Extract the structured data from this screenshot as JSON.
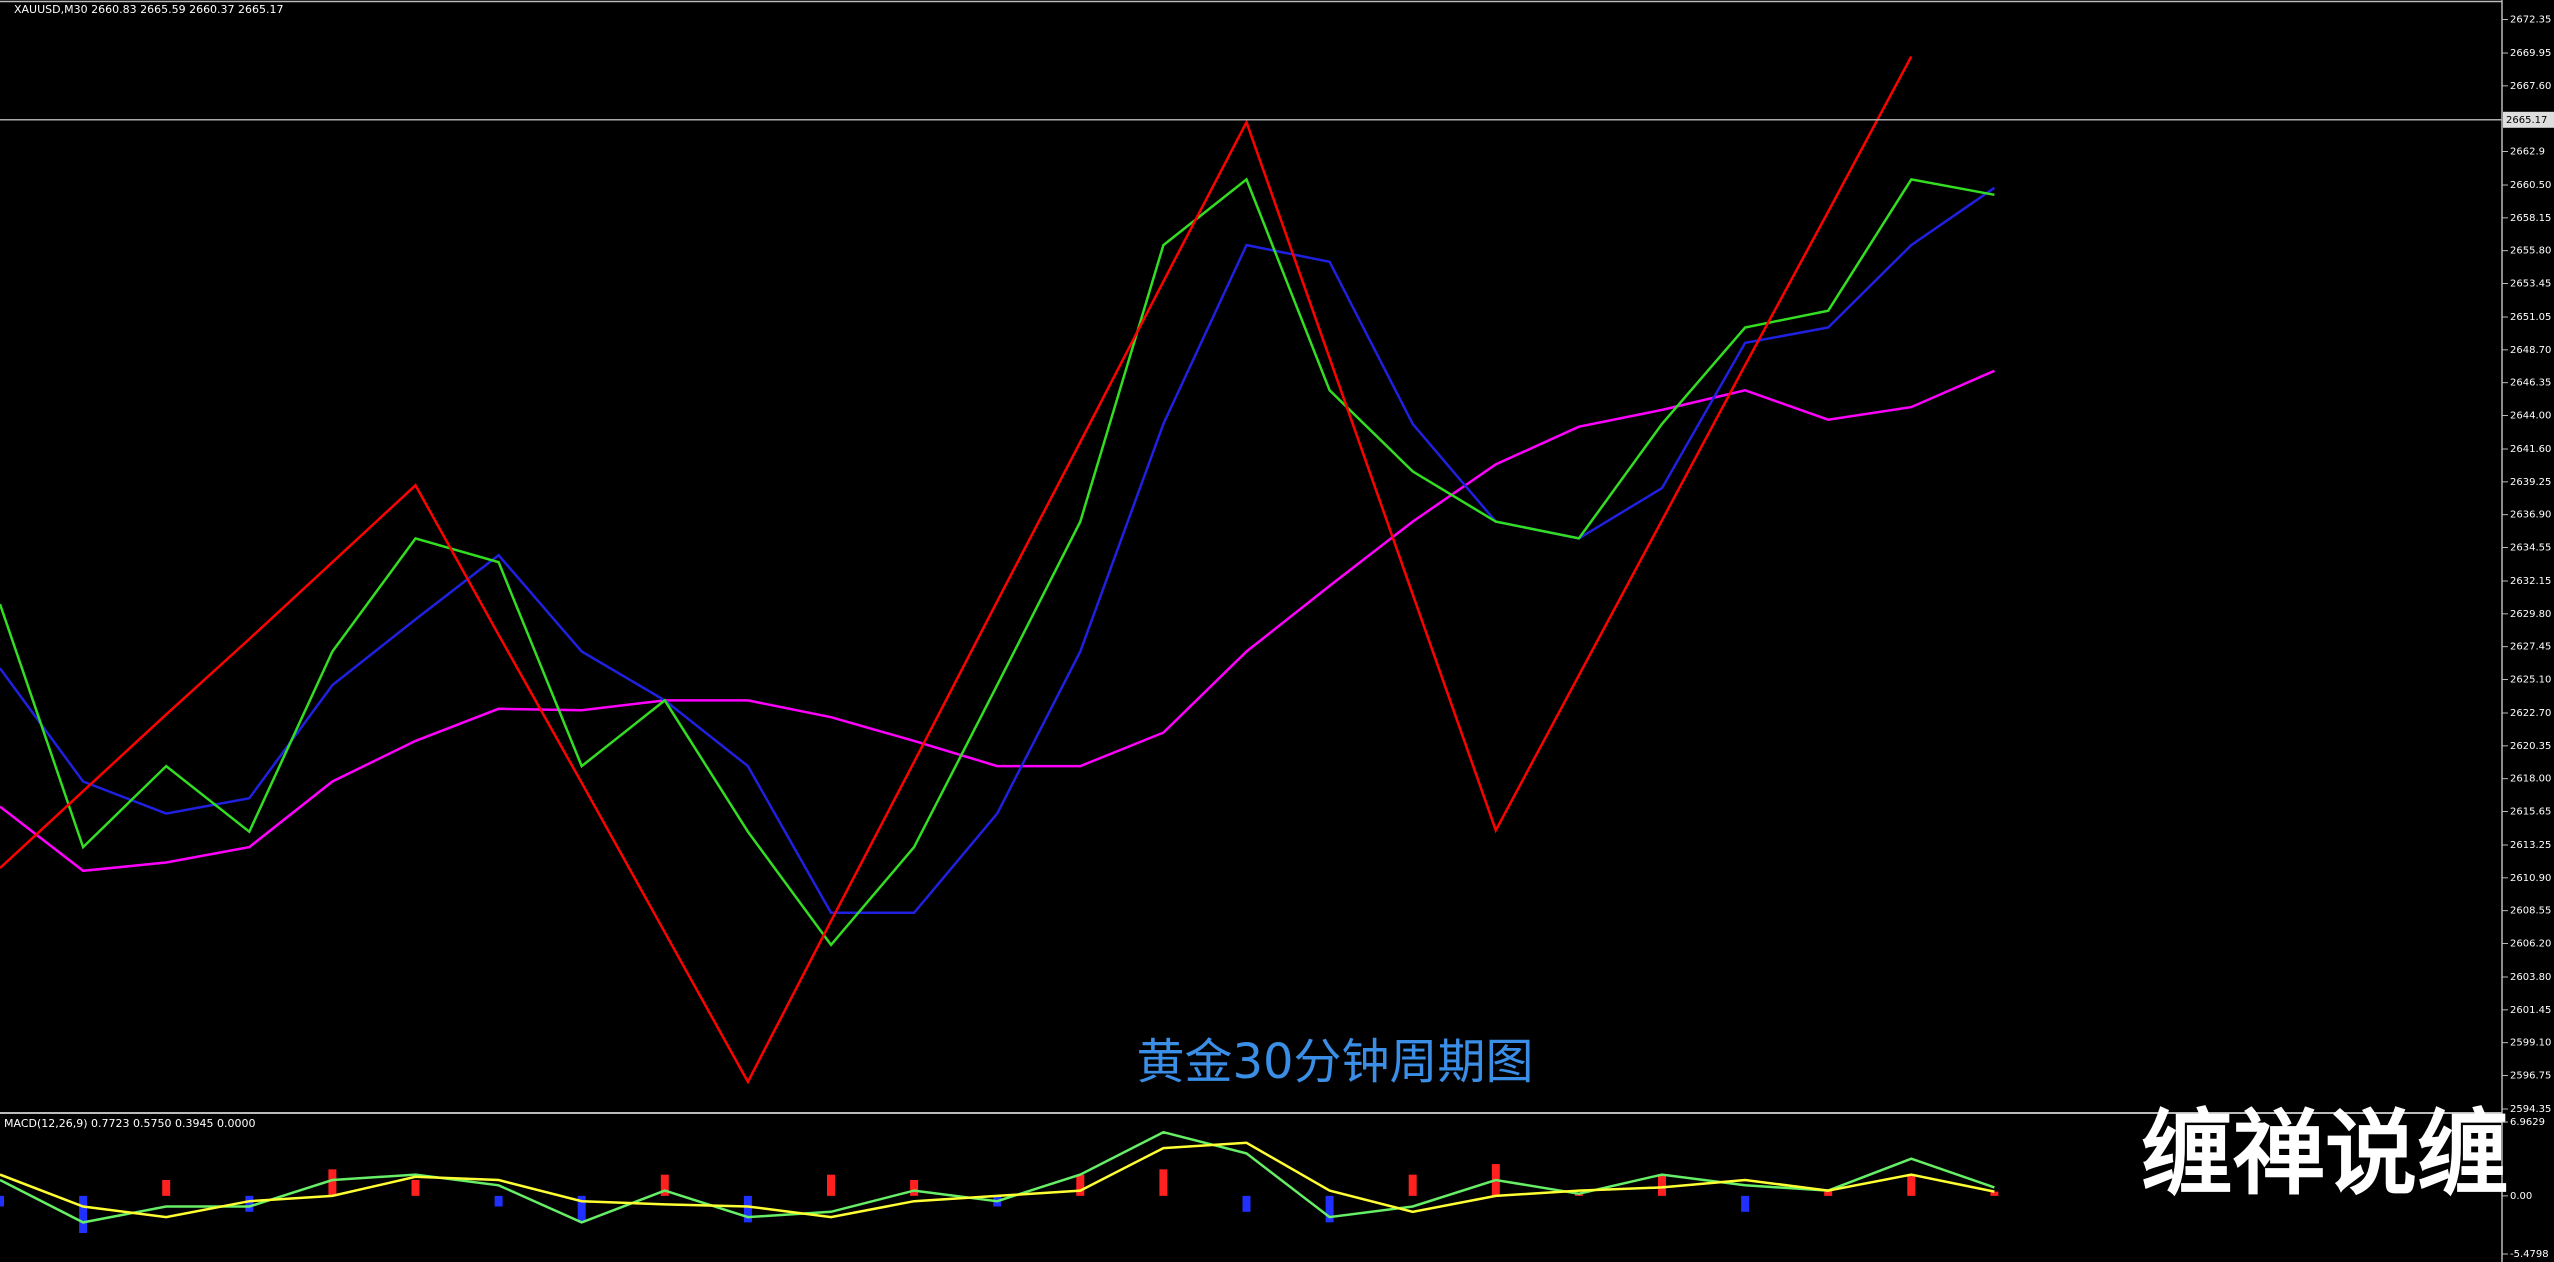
{
  "chart_data": [
    {
      "type": "line",
      "title": "XAUUSD,M30  2660.83 2665.59 2660.37 2665.17",
      "annotations": [
        "黄金30分钟周期图"
      ],
      "categories": [
        null,
        null,
        null,
        null,
        null,
        null,
        null,
        null,
        null,
        null,
        null,
        null,
        null,
        null,
        null,
        null,
        null,
        null,
        null,
        null,
        null,
        null,
        null,
        null,
        null
      ],
      "series": [
        {
          "color": "#ff00ff",
          "values": [
            2616,
            2611.4,
            2612,
            2613.1,
            2617.8,
            2620.7,
            2623,
            2622.9,
            2623.6,
            2623.6,
            2622.4,
            2620.7,
            2618.9,
            2618.9,
            2621.3,
            2627.1,
            2631.8,
            2636.4,
            2640.5,
            2643.2,
            2644.4,
            2645.8,
            2643.7,
            2644.6,
            2647.2
          ]
        },
        {
          "color": "#2020e0",
          "values": [
            2625.9,
            2617.8,
            2615.5,
            2616.6,
            2624.7,
            2629.4,
            2634,
            2627.1,
            2623.6,
            2618.9,
            2608.4,
            2608.4,
            2615.5,
            2627.1,
            2643.4,
            2656.2,
            2655,
            2643.4,
            2636.4,
            2635.2,
            2638.8,
            2649.2,
            2650.3,
            2656.2,
            2660.3
          ]
        },
        {
          "color": "#33dd22",
          "values": [
            2630.5,
            2613.1,
            2618.9,
            2614.2,
            2627.1,
            2635.2,
            2633.5,
            2618.9,
            2623.6,
            2614.2,
            2606.1,
            2613.1,
            2624.7,
            2636.4,
            2656.2,
            2660.9,
            2645.8,
            2640,
            2636.4,
            2635.2,
            2643.4,
            2650.3,
            2651.5,
            2660.9,
            2659.8
          ]
        },
        {
          "color": "#ff0000",
          "values": [
            2611.6,
            2617.1,
            2622.6,
            2628.0,
            2633.5,
            2639.0,
            2628.3,
            2617.7,
            2607.0,
            2596.3,
            2607.8,
            2619.2,
            2630.7,
            2642.1,
            2653.6,
            2665.0,
            2648.1,
            2631.2,
            2614.3,
            2625.4,
            2636.5,
            2647.6,
            2658.6,
            2669.7,
            null
          ]
        }
      ],
      "current_price": 2665.17,
      "ylim": [
        2594.35,
        2672.35
      ],
      "yticks": [
        2672.35,
        2669.95,
        {
          "value": 2667.6,
          "label": "2667.60"
        },
        2662.9,
        {
          "value": 2660.5,
          "label": "2660.50"
        },
        2658.15,
        {
          "value": 2655.8,
          "label": "2655.80"
        },
        2653.45,
        2651.05,
        {
          "value": 2648.7,
          "label": "2648.70"
        },
        2646.35,
        {
          "value": 2644,
          "label": "2644.00"
        },
        {
          "value": 2641.6,
          "label": "2641.60"
        },
        2639.25,
        {
          "value": 2636.9,
          "label": "2636.90"
        },
        2634.55,
        2632.15,
        {
          "value": 2629.8,
          "label": "2629.80"
        },
        2627.45,
        {
          "value": 2625.1,
          "label": "2625.10"
        },
        {
          "value": 2622.7,
          "label": "2622.70"
        },
        2620.35,
        {
          "value": 2618,
          "label": "2618.00"
        },
        2615.65,
        2613.25,
        {
          "value": 2610.9,
          "label": "2610.90"
        },
        2608.55,
        {
          "value": 2606.2,
          "label": "2606.20"
        },
        {
          "value": 2603.8,
          "label": "2603.80"
        },
        2601.45,
        {
          "value": 2599.1,
          "label": "2599.10"
        },
        2596.75,
        2594.35
      ]
    },
    {
      "type": "macd",
      "title": "MACD(12,26,9) 0.7723 0.5750 0.3945 0.0000",
      "categories": [
        null,
        null,
        null,
        null,
        null,
        null,
        null,
        null,
        null,
        null,
        null,
        null,
        null,
        null,
        null,
        null,
        null,
        null,
        null,
        null,
        null,
        null,
        null,
        null,
        null
      ],
      "series": [
        {
          "kind": "bar",
          "color": "#ff2020",
          "negative_color": "#2030ff",
          "values": [
            -1.0,
            -3.5,
            1.5,
            -1.5,
            2.5,
            1.5,
            -1.0,
            -2.5,
            2.0,
            -2.5,
            2.0,
            1.5,
            -1.0,
            2.0,
            2.5,
            -1.5,
            -2.5,
            2.0,
            3.0,
            0.3,
            2.0,
            -1.5,
            0.5,
            2.0,
            0.4
          ]
        },
        {
          "kind": "line",
          "color": "#66ee66",
          "values": [
            1.5,
            -2.5,
            -1.0,
            -1.0,
            1.5,
            2.0,
            1.0,
            -2.5,
            0.5,
            -2.0,
            -1.5,
            0.5,
            -0.5,
            2.0,
            6.0,
            4.0,
            -2.0,
            -1.0,
            1.5,
            0.2,
            2.0,
            1.0,
            0.5,
            3.5,
            0.8
          ]
        },
        {
          "kind": "line",
          "color": "#ffff33",
          "values": [
            2.0,
            -1.0,
            -2.0,
            -0.5,
            0.0,
            1.8,
            1.5,
            -0.5,
            -0.8,
            -1.0,
            -2.0,
            -0.5,
            0.0,
            0.5,
            4.5,
            5.0,
            0.5,
            -1.5,
            0.0,
            0.5,
            0.8,
            1.5,
            0.5,
            2.0,
            0.4
          ]
        }
      ],
      "ylim": [
        -5.4798,
        6.9629
      ],
      "yticks": [
        6.9629,
        {
          "value": 0,
          "label": "0.00"
        },
        -5.4798
      ]
    }
  ],
  "watermark": "缠禅说缠"
}
